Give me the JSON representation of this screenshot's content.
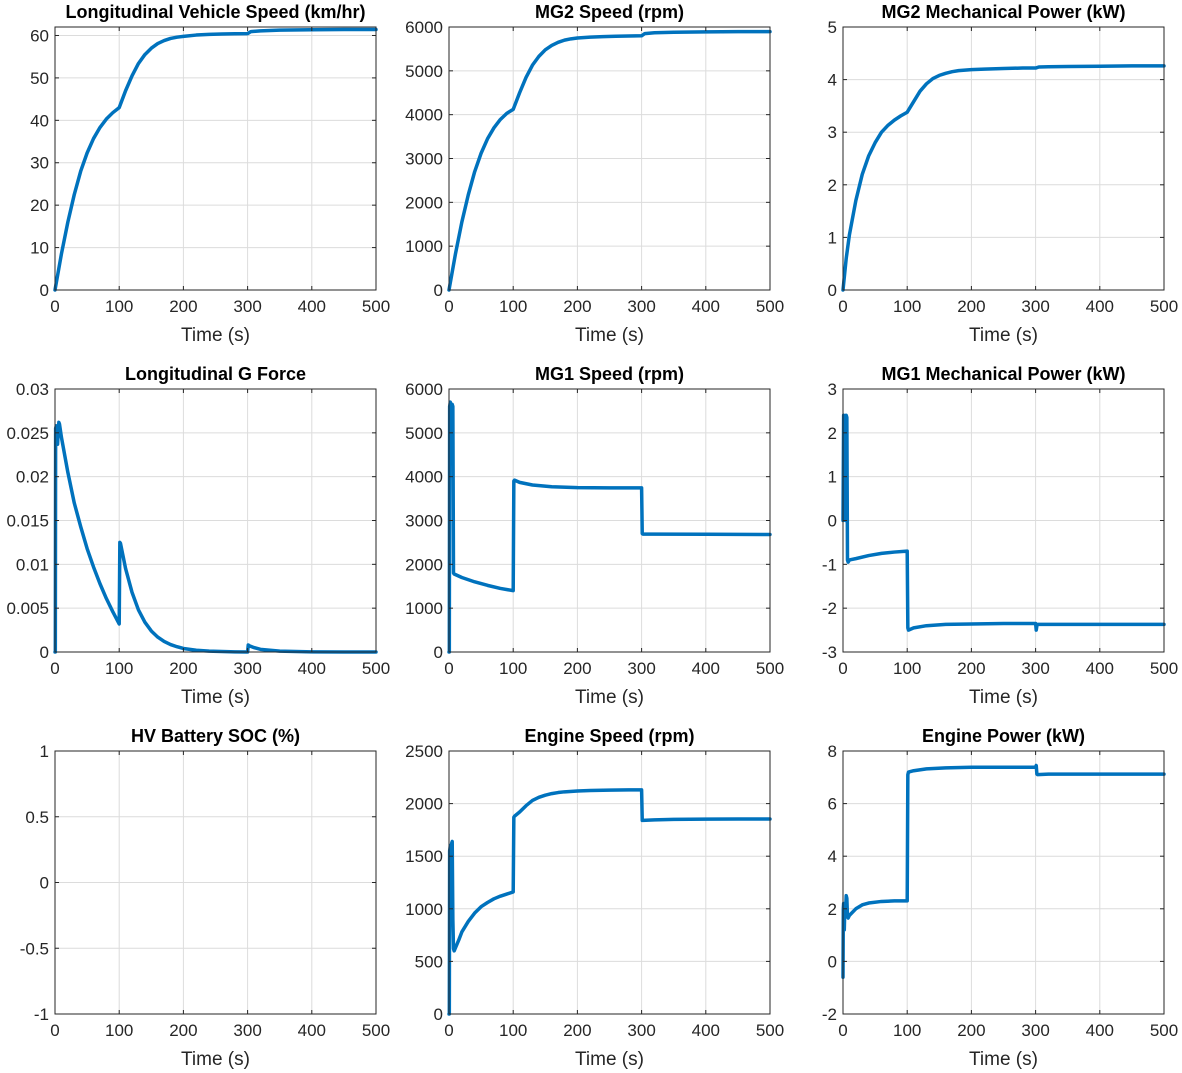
{
  "figure": {
    "background": "#ffffff",
    "line_color": "#0072bd"
  },
  "chart_data": [
    {
      "type": "line",
      "title": "Longitudinal Vehicle Speed (km/hr)",
      "xlabel": "Time (s)",
      "ylabel": "",
      "xlim": [
        0,
        500
      ],
      "ylim": [
        0,
        62
      ],
      "xticks": [
        0,
        100,
        200,
        300,
        400,
        500
      ],
      "yticks": [
        0,
        10,
        20,
        30,
        40,
        50,
        60
      ],
      "ytick_labels": [
        "0",
        "10",
        "20",
        "30",
        "40",
        "50",
        "60"
      ],
      "grid": true,
      "series": [
        {
          "x": [
            0,
            10,
            20,
            30,
            40,
            50,
            60,
            70,
            80,
            90,
            100,
            110,
            120,
            130,
            140,
            150,
            160,
            170,
            180,
            190,
            200,
            220,
            240,
            260,
            280,
            300,
            305,
            320,
            350,
            400,
            450,
            500
          ],
          "values": [
            0,
            8.5,
            16,
            22.5,
            28,
            32.3,
            35.7,
            38.3,
            40.3,
            41.8,
            43,
            47,
            50.5,
            53.4,
            55.5,
            57,
            58.1,
            58.8,
            59.3,
            59.6,
            59.8,
            60.1,
            60.25,
            60.35,
            60.4,
            60.45,
            60.9,
            61.1,
            61.25,
            61.35,
            61.4,
            61.4
          ]
        }
      ]
    },
    {
      "type": "line",
      "title": "MG2 Speed (rpm)",
      "xlabel": "Time (s)",
      "ylabel": "",
      "xlim": [
        0,
        500
      ],
      "ylim": [
        0,
        6000
      ],
      "xticks": [
        0,
        100,
        200,
        300,
        400,
        500
      ],
      "yticks": [
        0,
        1000,
        2000,
        3000,
        4000,
        5000,
        6000
      ],
      "ytick_labels": [
        "0",
        "1000",
        "2000",
        "3000",
        "4000",
        "5000",
        "6000"
      ],
      "grid": true,
      "series": [
        {
          "x": [
            0,
            10,
            20,
            30,
            40,
            50,
            60,
            70,
            80,
            90,
            100,
            110,
            120,
            130,
            140,
            150,
            160,
            170,
            180,
            190,
            200,
            220,
            240,
            260,
            280,
            300,
            305,
            320,
            350,
            400,
            450,
            500
          ],
          "values": [
            0,
            820,
            1550,
            2170,
            2700,
            3120,
            3450,
            3700,
            3890,
            4030,
            4120,
            4500,
            4850,
            5130,
            5330,
            5480,
            5580,
            5650,
            5700,
            5730,
            5750,
            5770,
            5780,
            5790,
            5795,
            5800,
            5850,
            5870,
            5880,
            5890,
            5895,
            5895
          ]
        }
      ]
    },
    {
      "type": "line",
      "title": "MG2 Mechanical Power (kW)",
      "xlabel": "Time (s)",
      "ylabel": "",
      "xlim": [
        0,
        500
      ],
      "ylim": [
        0,
        5
      ],
      "xticks": [
        0,
        100,
        200,
        300,
        400,
        500
      ],
      "yticks": [
        0,
        1,
        2,
        3,
        4,
        5
      ],
      "ytick_labels": [
        "0",
        "1",
        "2",
        "3",
        "4",
        "5"
      ],
      "grid": true,
      "series": [
        {
          "x": [
            0,
            5,
            10,
            20,
            30,
            40,
            50,
            60,
            70,
            80,
            90,
            100,
            110,
            120,
            130,
            140,
            150,
            160,
            170,
            180,
            200,
            220,
            250,
            280,
            300,
            305,
            320,
            350,
            400,
            450,
            500
          ],
          "values": [
            0,
            0.6,
            1.05,
            1.7,
            2.2,
            2.55,
            2.8,
            3.0,
            3.13,
            3.23,
            3.31,
            3.38,
            3.58,
            3.78,
            3.92,
            4.02,
            4.08,
            4.12,
            4.15,
            4.17,
            4.19,
            4.2,
            4.21,
            4.22,
            4.22,
            4.24,
            4.245,
            4.25,
            4.255,
            4.26,
            4.26
          ]
        }
      ]
    },
    {
      "type": "line",
      "title": "Longitudinal G Force",
      "xlabel": "Time (s)",
      "ylabel": "",
      "xlim": [
        0,
        500
      ],
      "ylim": [
        0,
        0.03
      ],
      "xticks": [
        0,
        100,
        200,
        300,
        400,
        500
      ],
      "yticks": [
        0,
        0.005,
        0.01,
        0.015,
        0.02,
        0.025,
        0.03
      ],
      "ytick_labels": [
        "0",
        "0.005",
        "0.01",
        "0.015",
        "0.02",
        "0.025",
        "0.03"
      ],
      "grid": true,
      "series": [
        {
          "x": [
            0,
            0.5,
            1,
            2,
            3,
            4,
            5,
            6,
            7,
            8,
            10,
            20,
            30,
            40,
            50,
            60,
            70,
            80,
            90,
            100,
            101,
            102,
            110,
            120,
            130,
            140,
            150,
            160,
            170,
            180,
            190,
            200,
            220,
            240,
            260,
            280,
            300,
            301,
            303,
            310,
            320,
            350,
            400,
            450,
            500
          ],
          "values": [
            0,
            0,
            0.0255,
            0.0258,
            0.0245,
            0.0237,
            0.0252,
            0.0262,
            0.026,
            0.0255,
            0.0245,
            0.0205,
            0.017,
            0.0143,
            0.0118,
            0.0097,
            0.0078,
            0.0061,
            0.0046,
            0.0032,
            0.0125,
            0.0124,
            0.0095,
            0.0068,
            0.0048,
            0.0034,
            0.0024,
            0.0017,
            0.0012,
            0.00085,
            0.0006,
            0.0004,
            0.0002,
            0.0001,
            5e-05,
            2e-05,
            0,
            0.0008,
            0.0007,
            0.0005,
            0.0003,
            0.0001,
            2e-05,
            0,
            0
          ]
        }
      ]
    },
    {
      "type": "line",
      "title": "MG1 Speed (rpm)",
      "xlabel": "Time (s)",
      "ylabel": "",
      "xlim": [
        0,
        500
      ],
      "ylim": [
        0,
        6000
      ],
      "xticks": [
        0,
        100,
        200,
        300,
        400,
        500
      ],
      "yticks": [
        0,
        1000,
        2000,
        3000,
        4000,
        5000,
        6000
      ],
      "ytick_labels": [
        "0",
        "1000",
        "2000",
        "3000",
        "4000",
        "5000",
        "6000"
      ],
      "grid": true,
      "series": [
        {
          "x": [
            0,
            0.5,
            1,
            2,
            3,
            4,
            5,
            6,
            7,
            8,
            20,
            40,
            60,
            80,
            100,
            101,
            102,
            110,
            130,
            160,
            200,
            250,
            300,
            301,
            302,
            320,
            400,
            500
          ],
          "values": [
            0,
            0,
            5600,
            5700,
            5650,
            5580,
            5650,
            5600,
            1800,
            1780,
            1700,
            1600,
            1520,
            1450,
            1400,
            3900,
            3920,
            3870,
            3810,
            3770,
            3750,
            3745,
            3745,
            2700,
            2690,
            2690,
            2685,
            2680
          ]
        }
      ]
    },
    {
      "type": "line",
      "title": "MG1 Mechanical Power (kW)",
      "xlabel": "Time (s)",
      "ylabel": "",
      "xlim": [
        0,
        500
      ],
      "ylim": [
        -3,
        3
      ],
      "xticks": [
        0,
        100,
        200,
        300,
        400,
        500
      ],
      "yticks": [
        -3,
        -2,
        -1,
        0,
        1,
        2,
        3
      ],
      "ytick_labels": [
        "-3",
        "-2",
        "-1",
        "0",
        "1",
        "2",
        "3"
      ],
      "grid": true,
      "series": [
        {
          "x": [
            0,
            1,
            2,
            3,
            4,
            5,
            6,
            7,
            8,
            10,
            20,
            40,
            60,
            80,
            100,
            101,
            102,
            110,
            130,
            160,
            200,
            250,
            300,
            301,
            302,
            303,
            320,
            400,
            500
          ],
          "values": [
            0,
            2.4,
            0.3,
            2.35,
            0,
            2.4,
            2.35,
            -0.9,
            -0.95,
            -0.9,
            -0.87,
            -0.8,
            -0.75,
            -0.72,
            -0.7,
            -2.45,
            -2.5,
            -2.45,
            -2.4,
            -2.37,
            -2.36,
            -2.35,
            -2.35,
            -2.5,
            -2.4,
            -2.37,
            -2.37,
            -2.37,
            -2.37
          ]
        }
      ]
    },
    {
      "type": "line",
      "title": "HV Battery SOC (%)",
      "xlabel": "Time (s)",
      "ylabel": "",
      "xlim": [
        0,
        500
      ],
      "ylim": [
        -1,
        1
      ],
      "xticks": [
        0,
        100,
        200,
        300,
        400,
        500
      ],
      "yticks": [
        -1,
        -0.5,
        0,
        0.5,
        1
      ],
      "ytick_labels": [
        "-1",
        "-0.5",
        "0",
        "0.5",
        "1"
      ],
      "grid": true,
      "series": []
    },
    {
      "type": "line",
      "title": "Engine Speed (rpm)",
      "xlabel": "Time (s)",
      "ylabel": "",
      "xlim": [
        0,
        500
      ],
      "ylim": [
        0,
        2500
      ],
      "xticks": [
        0,
        100,
        200,
        300,
        400,
        500
      ],
      "yticks": [
        0,
        500,
        1000,
        1500,
        2000,
        2500
      ],
      "ytick_labels": [
        "0",
        "500",
        "1000",
        "1500",
        "2000",
        "2500"
      ],
      "grid": true,
      "series": [
        {
          "x": [
            0,
            0.5,
            1,
            2,
            3,
            4,
            5,
            6,
            7,
            8,
            15,
            20,
            30,
            40,
            50,
            60,
            70,
            80,
            90,
            100,
            101,
            102,
            110,
            120,
            130,
            140,
            150,
            160,
            170,
            180,
            200,
            220,
            250,
            280,
            300,
            301,
            302,
            320,
            350,
            400,
            450,
            500
          ],
          "values": [
            0,
            0,
            1550,
            1600,
            1400,
            1620,
            1640,
            900,
            620,
            600,
            700,
            780,
            880,
            960,
            1020,
            1060,
            1095,
            1120,
            1140,
            1160,
            1870,
            1880,
            1920,
            1980,
            2030,
            2060,
            2080,
            2095,
            2105,
            2112,
            2120,
            2125,
            2128,
            2130,
            2130,
            1840,
            1840,
            1845,
            1850,
            1852,
            1853,
            1853
          ]
        }
      ]
    },
    {
      "type": "line",
      "title": "Engine Power (kW)",
      "xlabel": "Time (s)",
      "ylabel": "",
      "xlim": [
        0,
        500
      ],
      "ylim": [
        -2,
        8
      ],
      "xticks": [
        0,
        100,
        200,
        300,
        400,
        500
      ],
      "yticks": [
        -2,
        0,
        2,
        4,
        6,
        8
      ],
      "ytick_labels": [
        "-2",
        "0",
        "2",
        "4",
        "6",
        "8"
      ],
      "grid": true,
      "series": [
        {
          "x": [
            0,
            0.5,
            1,
            2,
            3,
            4,
            5,
            6,
            7,
            8,
            10,
            20,
            30,
            40,
            60,
            80,
            100,
            101,
            102,
            110,
            130,
            160,
            200,
            250,
            300,
            301,
            302,
            303,
            320,
            400,
            500
          ],
          "values": [
            -0.6,
            2.0,
            2.2,
            1.2,
            2.2,
            1.9,
            2.5,
            2.4,
            1.7,
            1.65,
            1.75,
            2.0,
            2.15,
            2.22,
            2.28,
            2.3,
            2.3,
            7.1,
            7.2,
            7.25,
            7.32,
            7.36,
            7.38,
            7.38,
            7.38,
            7.45,
            7.12,
            7.1,
            7.12,
            7.12,
            7.12
          ]
        }
      ]
    }
  ]
}
